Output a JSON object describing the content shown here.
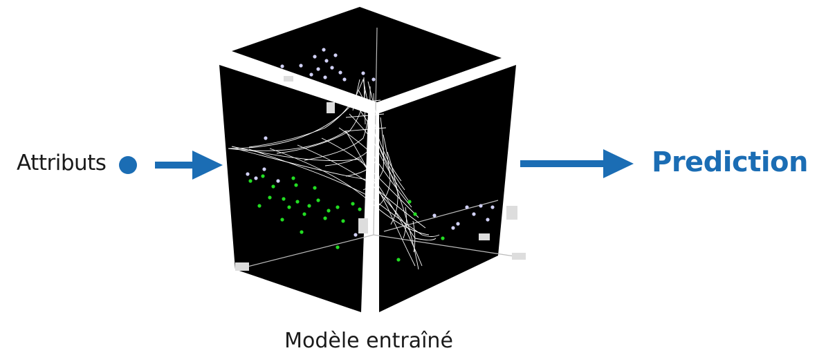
{
  "input": {
    "label": "Attributs"
  },
  "output": {
    "label": "Prediction"
  },
  "model": {
    "caption": "Modèle entraîné",
    "icon": "3d-scatter-surface-cube"
  },
  "colors": {
    "accent": "#1b6db4",
    "cube_face": "#000000",
    "mesh": "#ffffff",
    "point_class_a": "#22dd22",
    "point_class_b": "#c8c8f0"
  }
}
